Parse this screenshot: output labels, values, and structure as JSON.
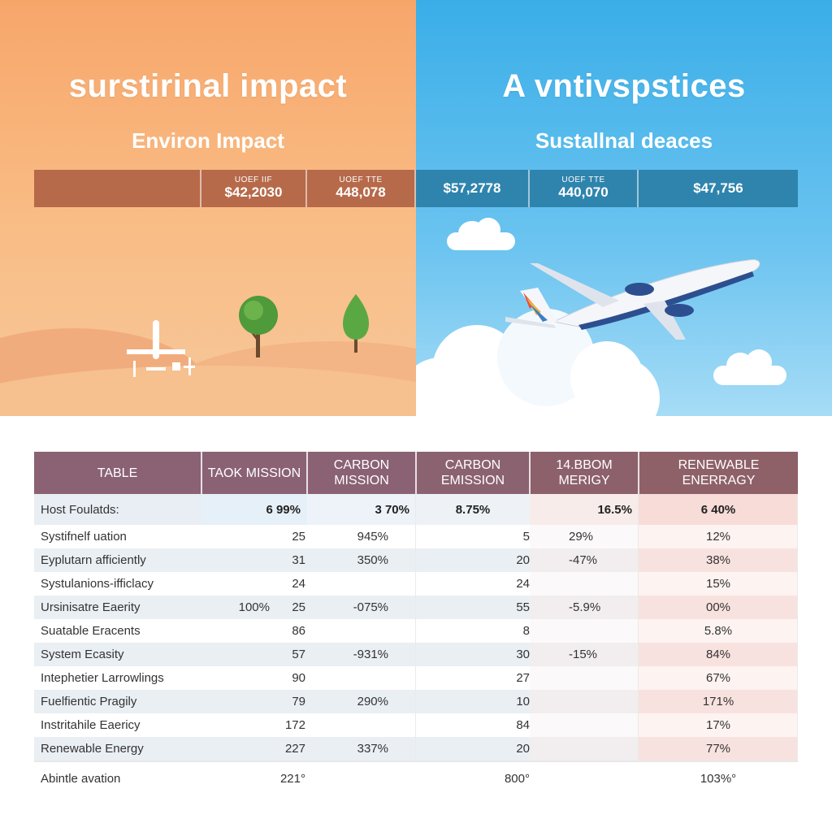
{
  "left_panel": {
    "title": "surstirinal impact",
    "subtitle": "Environ Impact"
  },
  "right_panel": {
    "title": "A vntivspstices",
    "subtitle": "Sustallnal deaces"
  },
  "summary_bar": [
    {
      "small": "",
      "value": ""
    },
    {
      "small": "UOEF IIF",
      "value": "$42,2030"
    },
    {
      "small": "UOEF TTE",
      "value": "448,078"
    },
    {
      "small": "",
      "value": "$57,2778"
    },
    {
      "small": "UOEF TTE",
      "value": "440,070"
    },
    {
      "small": "",
      "value": "$47,756"
    }
  ],
  "colors": {
    "header_left": "#8a6274",
    "header_right": "#8e6168",
    "bar_left": "#b66a4a",
    "bar_right": "#2e84ad",
    "accent_pink": "#f7d3cf"
  },
  "table": {
    "headers": [
      "TABLE",
      "TAOK MISSION",
      "CARBON MISSION",
      "CARBON EMISSION",
      "14.BBOM MERIGY",
      "RENEWABLE ENERRAGY"
    ],
    "highlight_row": {
      "label": "Host Foulatds:",
      "c2": "6 99%",
      "c3": "3 70%",
      "c4": "8.75%",
      "c5": "16.5%",
      "c6": "6 40%"
    },
    "rows": [
      {
        "label": "Systifnelf uation",
        "a": "",
        "b": "25",
        "c": "945%",
        "d": "5",
        "e": "29%",
        "f": "12%"
      },
      {
        "label": "Eyplutarn afficiently",
        "a": "",
        "b": "31",
        "c": "350%",
        "d": "20",
        "e": "-47%",
        "f": "38%"
      },
      {
        "label": "Systulanions-ifficlacy",
        "a": "",
        "b": "24",
        "c": "",
        "d": "24",
        "e": "",
        "f": "15%"
      },
      {
        "label": "Ursinisatre Eaerity",
        "a": "100%",
        "b": "25",
        "c": "-075%",
        "d": "55",
        "e": "-5.9%",
        "f": "00%"
      },
      {
        "label": "Suatable Eracents",
        "a": "",
        "b": "86",
        "c": "",
        "d": "8",
        "e": "",
        "f": "5.8%"
      },
      {
        "label": "System Ecasity",
        "a": "",
        "b": "57",
        "c": "-931%",
        "d": "30",
        "e": "-15%",
        "f": "84%"
      },
      {
        "label": "Intephetier Larrowlings",
        "a": "",
        "b": "90",
        "c": "",
        "d": "27",
        "e": "",
        "f": "67%"
      },
      {
        "label": "Fuelfientic Pragily",
        "a": "",
        "b": "79",
        "c": "290%",
        "d": "10",
        "e": "",
        "f": "171%"
      },
      {
        "label": "Instritahile Eaericy",
        "a": "",
        "b": "172",
        "c": "",
        "d": "84",
        "e": "",
        "f": "17%"
      },
      {
        "label": "Renewable Energy",
        "a": "",
        "b": "227",
        "c": "337%",
        "d": "20",
        "e": "",
        "f": "77%"
      }
    ],
    "footer": {
      "label": "Abintle avation",
      "b": "221°",
      "d": "800°",
      "f": "103%°"
    }
  }
}
